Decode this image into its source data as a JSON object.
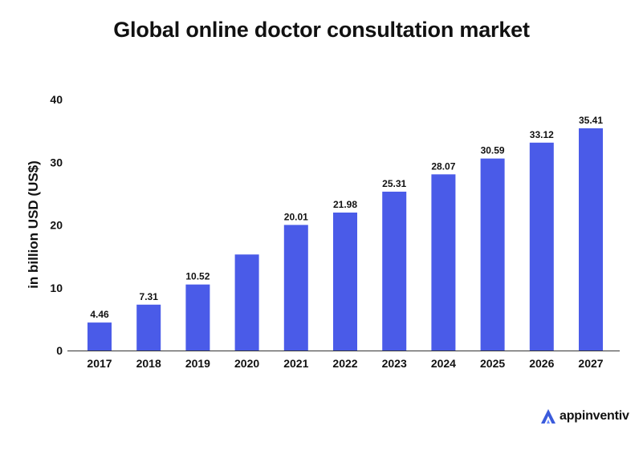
{
  "chart_data": {
    "type": "bar",
    "title": "Global online doctor consultation market",
    "ylabel": "in billion USD (US$)",
    "xlabel": "",
    "categories": [
      "2017",
      "2018",
      "2019",
      "2020",
      "2021",
      "2022",
      "2023",
      "2024",
      "2025",
      "2026",
      "2027"
    ],
    "values": [
      4.46,
      7.31,
      10.52,
      15.3,
      20.01,
      21.98,
      25.31,
      28.07,
      30.59,
      33.12,
      35.41
    ],
    "data_labels": [
      "4.46",
      "7.31",
      "10.52",
      "",
      "20.01",
      "21.98",
      "25.31",
      "28.07",
      "30.59",
      "33.12",
      "35.41"
    ],
    "ylim": [
      0,
      40
    ],
    "yticks": [
      "0",
      "10",
      "20",
      "30",
      "40"
    ],
    "ytick_values": [
      0,
      10,
      20,
      30,
      40
    ],
    "bar_color": "#4a5be8",
    "grid": false
  },
  "brand": {
    "name": "appinventiv",
    "color": "#3b5bdb"
  }
}
